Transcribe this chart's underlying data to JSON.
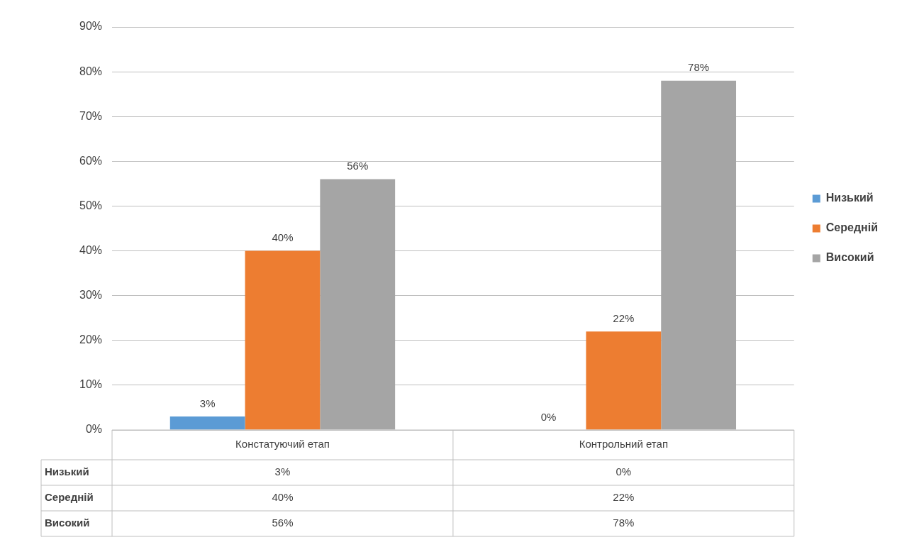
{
  "chart_data": {
    "type": "bar",
    "categories": [
      "Констатуючий етап",
      "Контрольний етап"
    ],
    "series": [
      {
        "name": "Низький",
        "color": "#5b9bd5",
        "values": [
          3,
          0
        ],
        "value_labels": [
          "3%",
          "0%"
        ]
      },
      {
        "name": "Середній",
        "color": "#ed7d31",
        "values": [
          40,
          22
        ],
        "value_labels": [
          "40%",
          "22%"
        ]
      },
      {
        "name": "Високий",
        "color": "#a5a5a5",
        "values": [
          56,
          78
        ],
        "value_labels": [
          "56%",
          "78%"
        ]
      }
    ],
    "ylim": [
      0,
      90
    ],
    "yticks": [
      {
        "value": 0,
        "label": "0%"
      },
      {
        "value": 10,
        "label": "10%"
      },
      {
        "value": 20,
        "label": "20%"
      },
      {
        "value": 30,
        "label": "30%"
      },
      {
        "value": 40,
        "label": "40%"
      },
      {
        "value": 50,
        "label": "50%"
      },
      {
        "value": 60,
        "label": "60%"
      },
      {
        "value": 70,
        "label": "70%"
      },
      {
        "value": 80,
        "label": "80%"
      },
      {
        "value": 90,
        "label": "90%"
      }
    ],
    "grid": "y",
    "legend": "right"
  }
}
